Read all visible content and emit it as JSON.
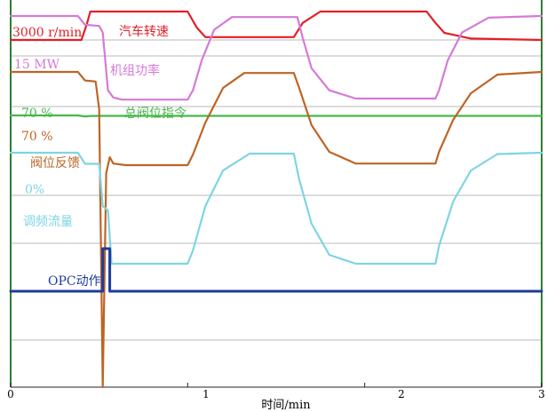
{
  "colors": {
    "speed": "#e41e26",
    "power": "#d57ad7",
    "command": "#47b64a",
    "feedback": "#bd6525",
    "freq": "#7ed4e3",
    "opc": "#1f3c9a",
    "grid": "#b9b9b9",
    "axis": "#2e7d32"
  },
  "labels": {
    "speed_value": "3000 r/min",
    "speed_name": "汽车转速",
    "power_value": "15 MW",
    "power_name": "机组功率",
    "command_value": "70 %",
    "command_name": "总阀位指令",
    "feedback_value": "70 %",
    "feedback_name": "阀位反馈",
    "freq_value": "0%",
    "freq_name": "调频流量",
    "opc_name": "OPC动作"
  },
  "chart_data": {
    "type": "line",
    "xlabel": "时间/min",
    "xlim": [
      0,
      3
    ],
    "x_ticks": [
      "0",
      "1",
      "2",
      "3"
    ],
    "ylabel": "",
    "grid": true,
    "legend": "inline labels",
    "series": [
      {
        "name": "汽车转速",
        "key": "speed",
        "x": [
          0,
          0.4,
          0.43,
          0.45,
          1.0,
          1.05,
          1.1,
          1.6,
          1.65,
          1.75,
          2.35,
          2.4,
          2.45,
          2.6,
          3.0
        ],
        "y": [
          0,
          0,
          0.55,
          1,
          1,
          0.45,
          0.1,
          0.1,
          0.6,
          1,
          1,
          0.6,
          0.25,
          0.05,
          0
        ]
      },
      {
        "name": "机组功率",
        "key": "power",
        "x": [
          0,
          0.38,
          0.42,
          0.5,
          0.52,
          0.55,
          0.58,
          0.63,
          1.0,
          1.03,
          1.08,
          1.15,
          1.25,
          1.62,
          1.65,
          1.7,
          1.8,
          1.95,
          2.4,
          2.42,
          2.47,
          2.55,
          2.7,
          3.0
        ],
        "y": [
          1,
          1,
          0.84,
          0.82,
          0.7,
          -0.35,
          -0.48,
          -0.52,
          -0.52,
          -0.35,
          0.2,
          0.75,
          0.98,
          0.98,
          0.6,
          0.05,
          -0.35,
          -0.5,
          -0.5,
          -0.35,
          0.2,
          0.7,
          0.97,
          1.0
        ]
      },
      {
        "name": "总阀位指令",
        "key": "command",
        "x": [
          0,
          0.38,
          0.42,
          0.45,
          0.52,
          3.0
        ],
        "y": [
          1,
          1,
          0.82,
          0.9,
          0.92,
          0.92
        ]
      },
      {
        "name": "阀位反馈",
        "key": "feedback",
        "x": [
          0,
          0.38,
          0.42,
          0.48,
          0.5,
          0.52,
          0.54,
          0.56,
          0.58,
          0.65,
          1.0,
          1.03,
          1.1,
          1.2,
          1.32,
          1.6,
          1.63,
          1.7,
          1.8,
          1.95,
          2.4,
          2.42,
          2.5,
          2.6,
          2.75,
          3.0
        ],
        "y": [
          1,
          1,
          0.84,
          0.82,
          0.3,
          -5.1,
          -0.9,
          -0.6,
          -0.72,
          -0.75,
          -0.75,
          -0.55,
          0.05,
          0.7,
          0.98,
          0.98,
          0.7,
          0.0,
          -0.5,
          -0.72,
          -0.72,
          -0.5,
          0.1,
          0.6,
          0.95,
          1.0
        ]
      },
      {
        "name": "调频流量",
        "key": "freq",
        "x": [
          0,
          0.38,
          0.42,
          0.5,
          0.52,
          0.55,
          0.57,
          1.0,
          1.03,
          1.1,
          1.2,
          1.35,
          1.6,
          1.63,
          1.7,
          1.8,
          1.95,
          2.4,
          2.42,
          2.5,
          2.6,
          2.75,
          3.0
        ],
        "y": [
          1,
          1,
          0.75,
          0.75,
          -0.2,
          -0.3,
          -1.5,
          -1.5,
          -1.2,
          -0.2,
          0.6,
          0.98,
          0.98,
          0.4,
          -0.6,
          -1.3,
          -1.5,
          -1.5,
          -1.1,
          -0.1,
          0.6,
          0.97,
          1.0
        ]
      },
      {
        "name": "OPC动作",
        "key": "opc",
        "x": [
          0,
          0.52,
          0.52,
          0.56,
          0.56,
          3.0
        ],
        "y": [
          0,
          0,
          1,
          1,
          0,
          0
        ]
      }
    ]
  }
}
